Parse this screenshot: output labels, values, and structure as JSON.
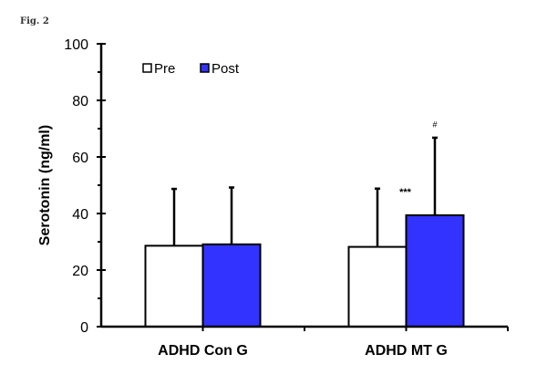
{
  "figure_label": "Fig. 2",
  "chart_data": {
    "type": "bar",
    "title": "",
    "xlabel": "",
    "ylabel": "Serotonin (ng/ml)",
    "ylim": [
      0,
      100
    ],
    "yticks": [
      "0",
      "20",
      "40",
      "60",
      "80",
      "100"
    ],
    "categories": [
      "ADHD Con G",
      "ADHD MT G"
    ],
    "series": [
      {
        "name": "Pre",
        "values": [
          28.6,
          28.2
        ],
        "error_upper": [
          48.7,
          48.8
        ],
        "color": "#ffffff"
      },
      {
        "name": "Post",
        "values": [
          29.1,
          39.4
        ],
        "error_upper": [
          49.2,
          66.8
        ],
        "color": "#3333ff"
      }
    ],
    "annotations": [
      {
        "text": "***",
        "category": "ADHD MT G",
        "near": "between Pre and Post"
      },
      {
        "text": "#",
        "category": "ADHD MT G",
        "series": "Post"
      }
    ],
    "legend_position": "top-left",
    "grid": false
  }
}
